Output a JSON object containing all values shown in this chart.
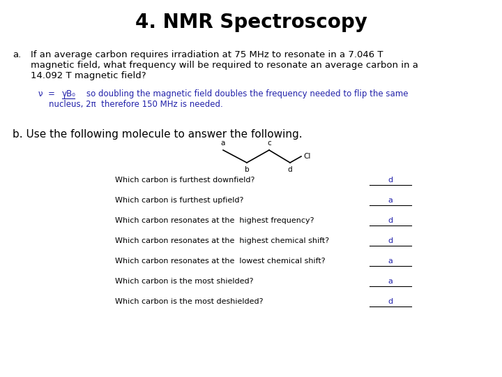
{
  "title": "4. NMR Spectroscopy",
  "title_fontsize": 20,
  "title_fontweight": "bold",
  "bg_color": "#ffffff",
  "text_color": "#000000",
  "blue_color": "#2222aa",
  "body_fontsize": 9.5,
  "small_fontsize": 8.5,
  "label_fontsize": 7.5,
  "part_a_label": "a.",
  "part_a_text_line1": "If an average carbon requires irradiation at 75 MHz to resonate in a 7.046 T",
  "part_a_text_line2": "magnetic field, what frequency will be required to resonate an average carbon in a",
  "part_a_text_line3": "14.092 T magnetic field?",
  "answer_a_prefix": "ν  =  ",
  "answer_a_formula": "γB₀",
  "answer_a_text": "    so doubling the magnetic field doubles the frequency needed to flip the same",
  "answer_a_text2": "nucleus, 2π  therefore 150 MHz is needed.",
  "part_b_label": "b. Use the following molecule to answer the following.",
  "questions": [
    "Which carbon is furthest downfield?",
    "Which carbon is furthest upfield?",
    "Which carbon resonates at the  highest frequency?",
    "Which carbon resonates at the  highest chemical shift?",
    "Which carbon resonates at the  lowest chemical shift?",
    "Which carbon is the most shielded?",
    "Which carbon is the most deshielded?"
  ],
  "answers": [
    "d",
    "a",
    "d",
    "d",
    "a",
    "a",
    "d"
  ],
  "font_family": "DejaVu Sans"
}
